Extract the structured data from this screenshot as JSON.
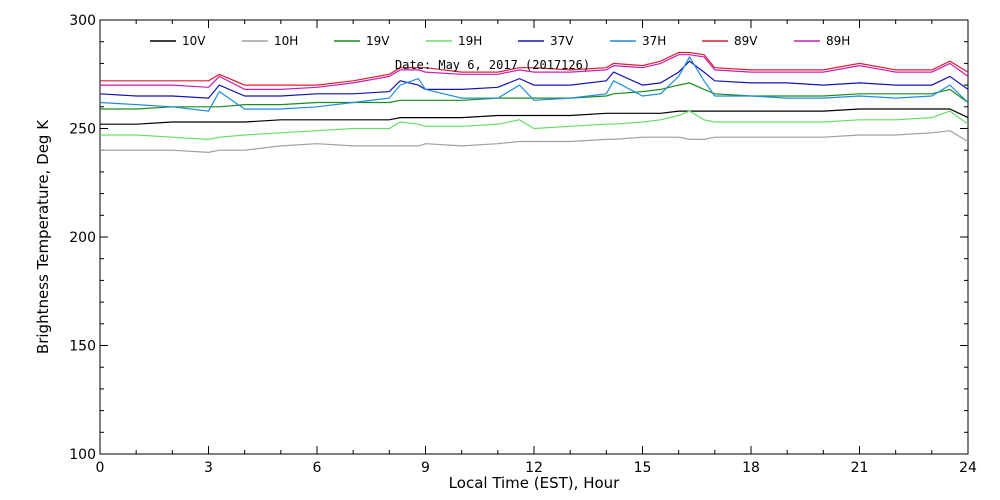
{
  "chart_data": {
    "type": "line",
    "title": "",
    "annotation": "Date: May  6, 2017 (2017126)",
    "xlabel": "Local Time (EST), Hour",
    "ylabel": "Brightness Temperature, Deg K",
    "xlim": [
      0,
      24
    ],
    "ylim": [
      100,
      300
    ],
    "xticks": [
      "0",
      "3",
      "6",
      "9",
      "12",
      "15",
      "18",
      "21",
      "24"
    ],
    "yticks": [
      "100",
      "150",
      "200",
      "250",
      "300"
    ],
    "grid": false,
    "legend_position": "top",
    "x": [
      0,
      1,
      2,
      3,
      3.3,
      4,
      5,
      6,
      7,
      8,
      8.3,
      8.8,
      9,
      10,
      11,
      11.6,
      12,
      13,
      14,
      14.2,
      15,
      15.5,
      16,
      16.3,
      16.7,
      17,
      18,
      19,
      20,
      21,
      22,
      23,
      23.5,
      24
    ],
    "series": [
      {
        "name": "10V",
        "color": "#000000",
        "values": [
          252,
          252,
          253,
          253,
          253,
          253,
          254,
          254,
          254,
          254,
          255,
          255,
          255,
          255,
          256,
          256,
          256,
          256,
          257,
          257,
          257,
          257,
          258,
          258,
          258,
          258,
          258,
          258,
          258,
          259,
          259,
          259,
          259,
          255
        ]
      },
      {
        "name": "10H",
        "color": "#a0a0a0",
        "values": [
          240,
          240,
          240,
          239,
          240,
          240,
          242,
          243,
          242,
          242,
          242,
          242,
          243,
          242,
          243,
          244,
          244,
          244,
          245,
          245,
          246,
          246,
          246,
          245,
          245,
          246,
          246,
          246,
          246,
          247,
          247,
          248,
          249,
          244
        ]
      },
      {
        "name": "19V",
        "color": "#1a8c1a",
        "values": [
          259,
          259,
          260,
          260,
          260,
          261,
          261,
          262,
          262,
          262,
          263,
          263,
          263,
          263,
          264,
          264,
          264,
          264,
          265,
          266,
          267,
          268,
          270,
          271,
          268,
          266,
          265,
          265,
          265,
          266,
          266,
          266,
          268,
          262
        ]
      },
      {
        "name": "19H",
        "color": "#66e066",
        "values": [
          247,
          247,
          246,
          245,
          246,
          247,
          248,
          249,
          250,
          250,
          253,
          252,
          251,
          251,
          252,
          254,
          250,
          251,
          252,
          252,
          253,
          254,
          256,
          258,
          254,
          253,
          253,
          253,
          253,
          254,
          254,
          255,
          258,
          252
        ]
      },
      {
        "name": "37V",
        "color": "#1414b4",
        "values": [
          266,
          265,
          265,
          264,
          270,
          265,
          265,
          266,
          266,
          267,
          272,
          270,
          268,
          268,
          269,
          273,
          270,
          270,
          272,
          276,
          270,
          271,
          276,
          281,
          276,
          272,
          271,
          271,
          270,
          271,
          270,
          270,
          274,
          268
        ]
      },
      {
        "name": "37H",
        "color": "#1e8cdc",
        "values": [
          262,
          261,
          260,
          258,
          267,
          259,
          259,
          260,
          262,
          264,
          270,
          273,
          268,
          264,
          264,
          270,
          263,
          264,
          266,
          272,
          265,
          266,
          274,
          283,
          272,
          265,
          265,
          264,
          264,
          265,
          264,
          265,
          270,
          262
        ]
      },
      {
        "name": "89V",
        "color": "#dc1e32",
        "values": [
          272,
          272,
          272,
          272,
          275,
          270,
          270,
          270,
          272,
          275,
          278,
          278,
          278,
          276,
          276,
          278,
          278,
          277,
          278,
          280,
          279,
          281,
          285,
          285,
          284,
          278,
          277,
          277,
          277,
          280,
          277,
          277,
          281,
          276
        ]
      },
      {
        "name": "89H",
        "color": "#c81eb4",
        "values": [
          270,
          270,
          270,
          269,
          274,
          268,
          268,
          269,
          271,
          274,
          277,
          277,
          276,
          275,
          275,
          277,
          276,
          276,
          277,
          279,
          278,
          280,
          284,
          284,
          283,
          277,
          276,
          276,
          276,
          279,
          276,
          276,
          280,
          274
        ]
      }
    ]
  }
}
